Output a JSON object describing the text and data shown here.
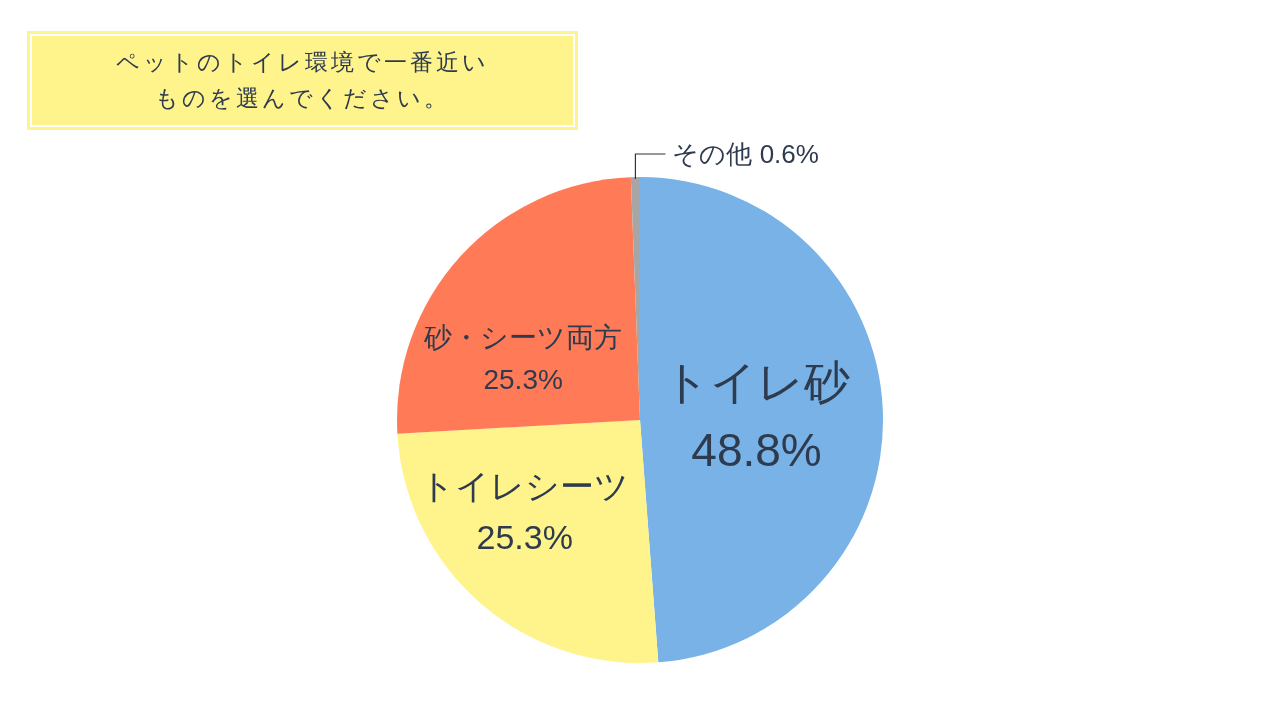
{
  "chart_data": {
    "type": "pie",
    "title": "ペットのトイレ環境で一番近いものを選んでください。",
    "categories": [
      "トイレ砂",
      "トイレシーツ",
      "砂・シーツ両方",
      "その他"
    ],
    "values": [
      48.8,
      25.3,
      25.3,
      0.6
    ],
    "colors": [
      "#78b2e6",
      "#fff48c",
      "#ff7b57",
      "#a6a6a6"
    ],
    "value_labels": [
      "48.8%",
      "25.3%",
      "25.3%",
      "0.6%"
    ]
  }
}
